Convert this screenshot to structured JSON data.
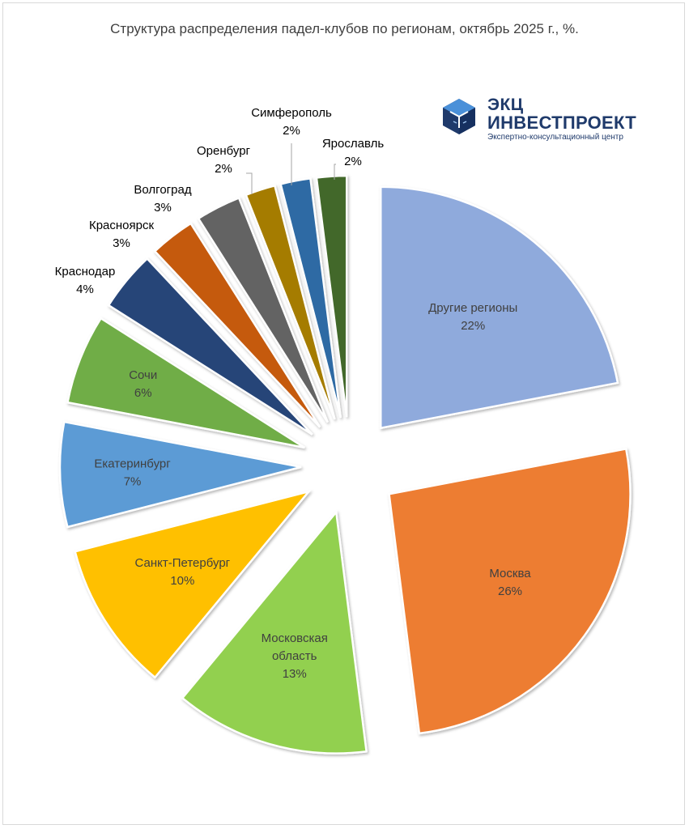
{
  "chart_data": {
    "type": "pie",
    "title": "Структура распределения падел-клубов по регионам, октябрь 2025 г., %.",
    "unit": "%",
    "slices": [
      {
        "label": "Другие регионы",
        "value": 22,
        "color": "#8faadc"
      },
      {
        "label": "Москва",
        "value": 26,
        "color": "#ed7d31"
      },
      {
        "label": "Московская область",
        "value": 13,
        "color": "#92d050"
      },
      {
        "label": "Санкт-Петербург",
        "value": 10,
        "color": "#ffc000"
      },
      {
        "label": "Екатеринбург",
        "value": 7,
        "color": "#5b9bd5"
      },
      {
        "label": "Сочи",
        "value": 6,
        "color": "#70ad47"
      },
      {
        "label": "Краснодар",
        "value": 4,
        "color": "#264478"
      },
      {
        "label": "Красноярск",
        "value": 3,
        "color": "#c55a11"
      },
      {
        "label": "Волгоград",
        "value": 3,
        "color": "#636363"
      },
      {
        "label": "Оренбург",
        "value": 2,
        "color": "#a57c00"
      },
      {
        "label": "Симферополь",
        "value": 2,
        "color": "#2e6ba4"
      },
      {
        "label": "Ярославль",
        "value": 2,
        "color": "#43682b"
      }
    ]
  },
  "logo": {
    "line1": "ЭКЦ",
    "line2": "ИНВЕСТПРОЕКТ",
    "line3": "Экспертно-консультационный центр"
  }
}
